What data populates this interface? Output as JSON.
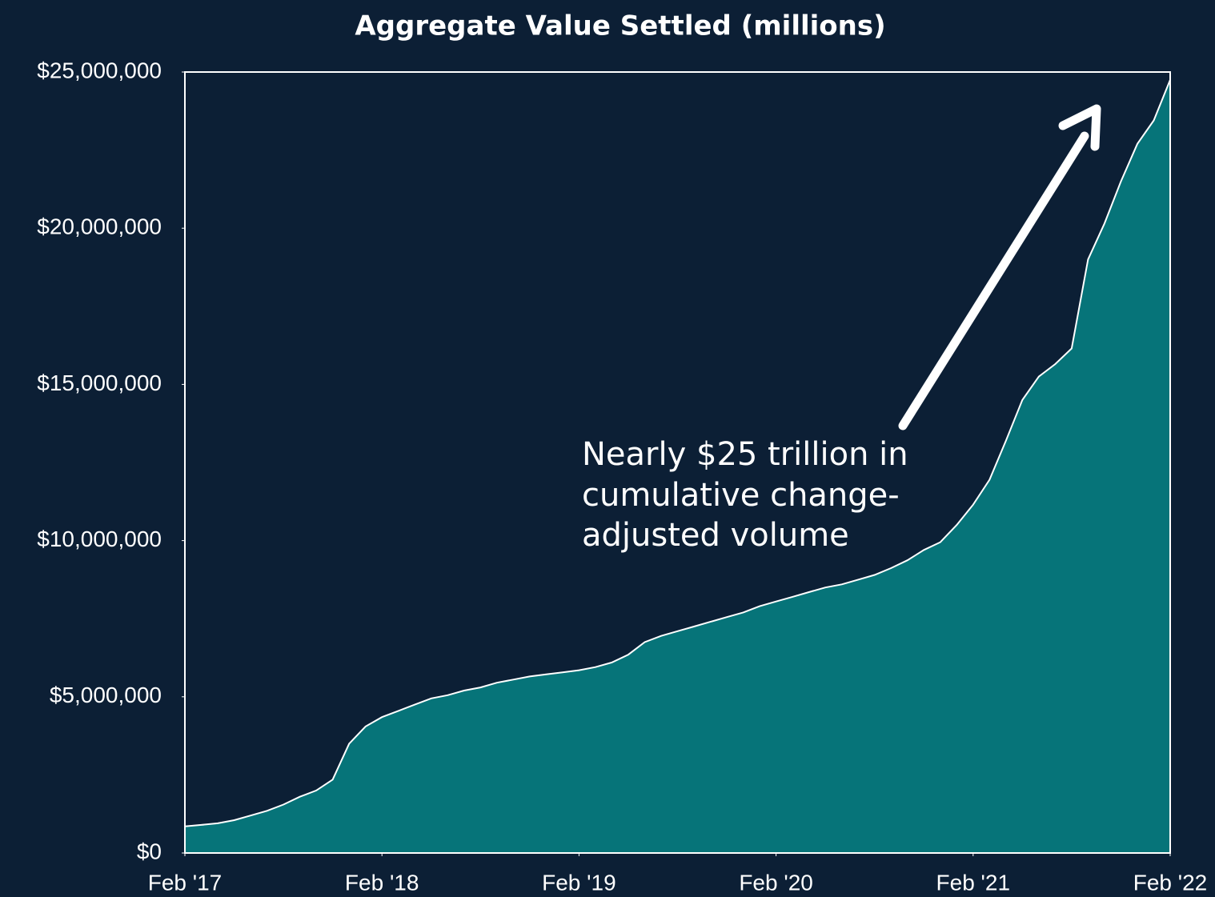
{
  "chart_data": {
    "type": "area",
    "title": "Aggregate Value Settled (millions)",
    "annotation": [
      "Nearly $25 trillion in",
      "cumulative change-",
      "adjusted volume"
    ],
    "x": [
      "2017-02",
      "2017-03",
      "2017-04",
      "2017-05",
      "2017-06",
      "2017-07",
      "2017-08",
      "2017-09",
      "2017-10",
      "2017-11",
      "2017-12",
      "2018-01",
      "2018-02",
      "2018-03",
      "2018-04",
      "2018-05",
      "2018-06",
      "2018-07",
      "2018-08",
      "2018-09",
      "2018-10",
      "2018-11",
      "2018-12",
      "2019-01",
      "2019-02",
      "2019-03",
      "2019-04",
      "2019-05",
      "2019-06",
      "2019-07",
      "2019-08",
      "2019-09",
      "2019-10",
      "2019-11",
      "2019-12",
      "2020-01",
      "2020-02",
      "2020-03",
      "2020-04",
      "2020-05",
      "2020-06",
      "2020-07",
      "2020-08",
      "2020-09",
      "2020-10",
      "2020-11",
      "2020-12",
      "2021-01",
      "2021-02",
      "2021-03",
      "2021-04",
      "2021-05",
      "2021-06",
      "2021-07",
      "2021-08",
      "2021-09",
      "2021-10",
      "2021-11",
      "2021-12",
      "2022-01",
      "2022-02"
    ],
    "series": [
      {
        "color": "#067479",
        "values": [
          850000,
          900000,
          950000,
          1050000,
          1200000,
          1350000,
          1550000,
          1800000,
          2000000,
          2350000,
          3500000,
          4050000,
          4350000,
          4550000,
          4750000,
          4950000,
          5050000,
          5200000,
          5300000,
          5450000,
          5550000,
          5650000,
          5720000,
          5780000,
          5850000,
          5950000,
          6100000,
          6350000,
          6750000,
          6950000,
          7100000,
          7250000,
          7400000,
          7550000,
          7700000,
          7900000,
          8050000,
          8200000,
          8350000,
          8500000,
          8600000,
          8750000,
          8900000,
          9120000,
          9370000,
          9700000,
          9950000,
          10500000,
          11150000,
          11950000,
          13200000,
          14500000,
          15250000,
          15650000,
          16150000,
          19000000,
          20150000,
          21500000,
          22700000,
          23450000,
          24750000
        ]
      }
    ],
    "xticks": [
      {
        "value": "2017-02",
        "label": "Feb '17"
      },
      {
        "value": "2018-02",
        "label": "Feb '18"
      },
      {
        "value": "2019-02",
        "label": "Feb '19"
      },
      {
        "value": "2020-02",
        "label": "Feb '20"
      },
      {
        "value": "2021-02",
        "label": "Feb '21"
      },
      {
        "value": "2022-02",
        "label": "Feb '22"
      }
    ],
    "xlim": [
      "2017-02",
      "2022-02"
    ],
    "ylim": [
      0,
      25000000
    ],
    "yticks": [
      {
        "value": 0,
        "label": "$0"
      },
      {
        "value": 5000000,
        "label": "$5,000,000"
      },
      {
        "value": 10000000,
        "label": "$10,000,000"
      },
      {
        "value": 15000000,
        "label": "$15,000,000"
      },
      {
        "value": 20000000,
        "label": "$20,000,000"
      },
      {
        "value": 25000000,
        "label": "$25,000,000"
      }
    ]
  }
}
